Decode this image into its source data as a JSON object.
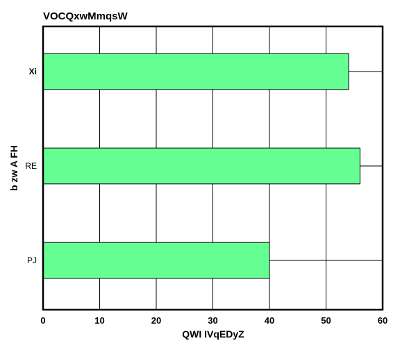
{
  "chart_data": {
    "type": "bar",
    "orientation": "horizontal",
    "title": "VOCQxwMmqsW",
    "xlabel": "QWI IVqEDyZ",
    "ylabel": "b  zw  A FH",
    "categories": [
      "Xi",
      "RE",
      "PJ"
    ],
    "values": [
      54,
      56,
      40
    ],
    "xlim": [
      0,
      60
    ],
    "xticks": [
      0,
      10,
      20,
      30,
      40,
      50,
      60
    ],
    "grid": true,
    "legend": "none",
    "bar_color": "#66ff94",
    "bar_edge_color": "#000000"
  }
}
